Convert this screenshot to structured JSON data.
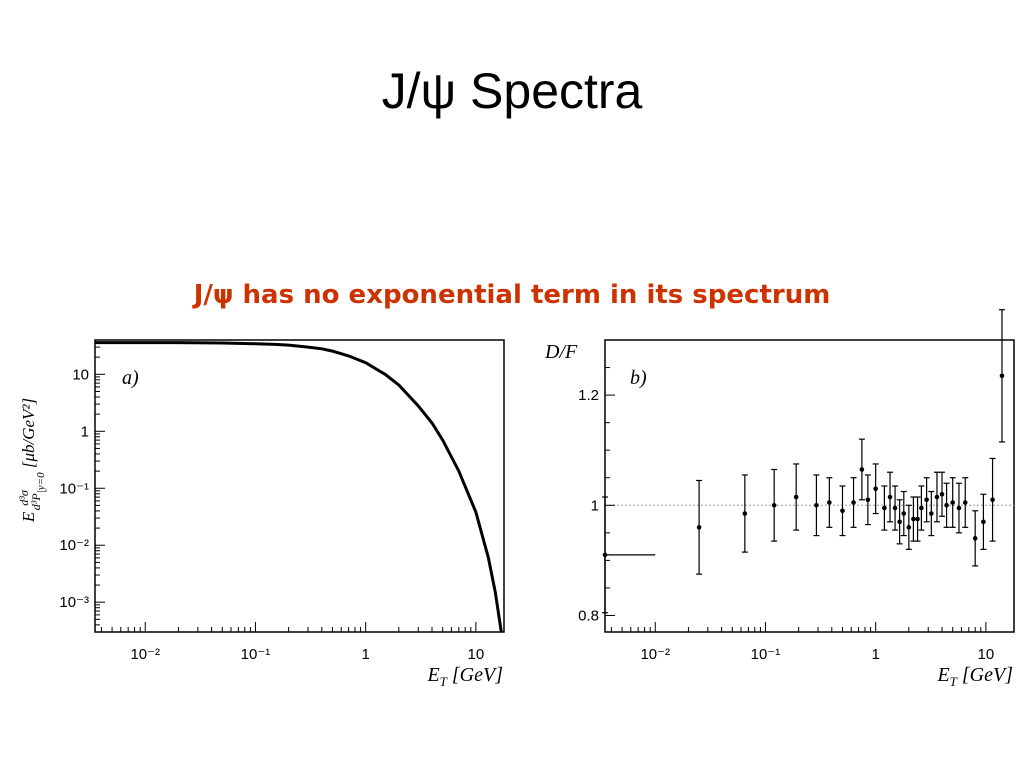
{
  "slide": {
    "title": "J/ψ Spectra",
    "subtitle": "J/ψ has no exponential term in its spectrum"
  },
  "chart_data": [
    {
      "type": "line",
      "panel_label": "a)",
      "xlabel": "E_T  [GeV]",
      "ylabel": "E d³σ/d³P |_{y=0}  [μb/GeV²]",
      "xscale": "log",
      "yscale": "log",
      "xlim": [
        0.0035,
        18
      ],
      "ylim": [
        0.0003,
        40
      ],
      "xticklabels": [
        "10⁻²",
        "10⁻¹",
        "1",
        "10"
      ],
      "yticklabels": [
        "10⁻³",
        "10⁻²",
        "10⁻¹",
        "1",
        "10"
      ],
      "grid": false,
      "series": [
        {
          "x": [
            0.0035,
            0.005,
            0.01,
            0.02,
            0.05,
            0.1,
            0.15,
            0.2,
            0.3,
            0.4,
            0.5,
            0.7,
            1.0,
            1.5,
            2.0,
            3.0,
            4.0,
            5.0,
            7.0,
            10.0,
            13.0,
            15.0,
            17.0
          ],
          "y": [
            36,
            36,
            36,
            36,
            35.5,
            34.5,
            33.5,
            32.5,
            30,
            28,
            25.5,
            21,
            16,
            10,
            6.5,
            2.8,
            1.4,
            0.7,
            0.2,
            0.038,
            0.006,
            0.0015,
            0.0003
          ]
        }
      ]
    },
    {
      "type": "scatter",
      "panel_label": "b)",
      "ylabel": "D/F",
      "xlabel": "E_T  [GeV]",
      "xscale": "log",
      "xlim": [
        0.0035,
        18
      ],
      "ylim": [
        0.77,
        1.3
      ],
      "xticklabels": [
        "10⁻²",
        "10⁻¹",
        "1",
        "10"
      ],
      "yticklabels": [
        "0.8",
        "1",
        "1.2"
      ],
      "reference_line": 1.0,
      "grid": false,
      "series": [
        {
          "x": [
            0.0035,
            0.025,
            0.065,
            0.12,
            0.19,
            0.29,
            0.38,
            0.5,
            0.63,
            0.75,
            0.85,
            1.0,
            1.2,
            1.35,
            1.5,
            1.65,
            1.8,
            2.0,
            2.2,
            2.4,
            2.6,
            2.9,
            3.2,
            3.6,
            4.0,
            4.4,
            5.0,
            5.7,
            6.5,
            8.0,
            9.5,
            11.5,
            14.0
          ],
          "y": [
            0.91,
            0.96,
            0.985,
            1.0,
            1.015,
            1.0,
            1.005,
            0.99,
            1.005,
            1.065,
            1.01,
            1.03,
            0.995,
            1.015,
            0.995,
            0.97,
            0.985,
            0.96,
            0.975,
            0.975,
            0.995,
            1.01,
            0.985,
            1.015,
            1.02,
            1.0,
            1.005,
            0.995,
            1.005,
            0.94,
            0.97,
            1.01,
            1.235
          ],
          "yerr": [
            0.105,
            0.085,
            0.07,
            0.065,
            0.06,
            0.055,
            0.045,
            0.045,
            0.045,
            0.055,
            0.045,
            0.045,
            0.04,
            0.045,
            0.04,
            0.04,
            0.04,
            0.04,
            0.04,
            0.04,
            0.04,
            0.04,
            0.04,
            0.045,
            0.04,
            0.04,
            0.045,
            0.045,
            0.045,
            0.05,
            0.05,
            0.075,
            0.12
          ],
          "xerr_low": [
            0.0035
          ],
          "xerr_high": [
            0.0065
          ]
        }
      ]
    }
  ]
}
